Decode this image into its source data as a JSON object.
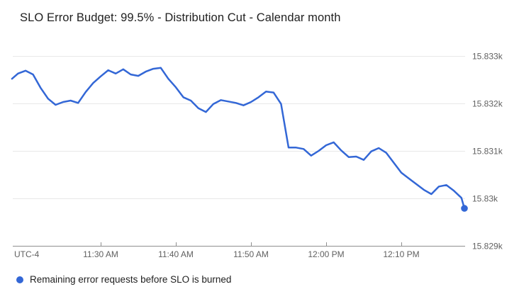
{
  "chart": {
    "title": "SLO Error Budget: 99.5% - Distribution Cut - Calendar month"
  },
  "legend": {
    "label": "Remaining error requests before SLO is burned"
  },
  "colors": {
    "line": "#3367d6",
    "marker": "#3367d6",
    "grid": "#e8e8e8",
    "axis": "#8f8f8f",
    "tick_label": "#616161",
    "title_text": "#212121",
    "legend_text": "#212121",
    "background": "#ffffff"
  },
  "chart_data": {
    "type": "line",
    "title": "SLO Error Budget: 99.5% - Distribution Cut - Calendar month",
    "xlabel": "",
    "ylabel": "",
    "x_unit": "minutes after 11:00 AM",
    "utc_label": "UTC-4",
    "xlim": [
      18.2,
      78.4
    ],
    "ylim": [
      15829,
      15833
    ],
    "grid": true,
    "legend_position": "bottom",
    "last_point_marker": true,
    "x_ticks": [
      {
        "t": 30,
        "label": "11:30 AM"
      },
      {
        "t": 40,
        "label": "11:40 AM"
      },
      {
        "t": 50,
        "label": "11:50 AM"
      },
      {
        "t": 60,
        "label": "12:00 PM"
      },
      {
        "t": 70,
        "label": "12:10 PM"
      }
    ],
    "y_ticks": [
      {
        "v": 15833,
        "label": "15.833k"
      },
      {
        "v": 15832,
        "label": "15.832k"
      },
      {
        "v": 15831,
        "label": "15.831k"
      },
      {
        "v": 15830,
        "label": "15.83k"
      },
      {
        "v": 15829,
        "label": "15.829k"
      }
    ],
    "series": [
      {
        "name": "Remaining error requests before SLO is burned",
        "points": [
          [
            18.2,
            15832.52
          ],
          [
            19,
            15832.63
          ],
          [
            20,
            15832.69
          ],
          [
            21,
            15832.61
          ],
          [
            22,
            15832.33
          ],
          [
            23,
            15832.1
          ],
          [
            24,
            15831.97
          ],
          [
            25,
            15832.03
          ],
          [
            26,
            15832.06
          ],
          [
            27,
            15832.01
          ],
          [
            28,
            15832.24
          ],
          [
            29,
            15832.43
          ],
          [
            30,
            15832.57
          ],
          [
            31,
            15832.7
          ],
          [
            32,
            15832.63
          ],
          [
            33,
            15832.72
          ],
          [
            34,
            15832.61
          ],
          [
            35,
            15832.58
          ],
          [
            36,
            15832.67
          ],
          [
            37,
            15832.73
          ],
          [
            38,
            15832.75
          ],
          [
            39,
            15832.52
          ],
          [
            40,
            15832.34
          ],
          [
            41,
            15832.13
          ],
          [
            42,
            15832.06
          ],
          [
            43,
            15831.9
          ],
          [
            44,
            15831.82
          ],
          [
            45,
            15831.99
          ],
          [
            46,
            15832.07
          ],
          [
            47,
            15832.04
          ],
          [
            48,
            15832.01
          ],
          [
            49,
            15831.96
          ],
          [
            50,
            15832.03
          ],
          [
            51,
            15832.13
          ],
          [
            52,
            15832.25
          ],
          [
            53,
            15832.23
          ],
          [
            54,
            15831.99
          ],
          [
            55,
            15831.07
          ],
          [
            56,
            15831.07
          ],
          [
            57,
            15831.04
          ],
          [
            58,
            15830.9
          ],
          [
            59,
            15831.0
          ],
          [
            60,
            15831.12
          ],
          [
            61,
            15831.18
          ],
          [
            62,
            15831.01
          ],
          [
            63,
            15830.87
          ],
          [
            64,
            15830.88
          ],
          [
            65,
            15830.81
          ],
          [
            66,
            15830.99
          ],
          [
            67,
            15831.06
          ],
          [
            68,
            15830.96
          ],
          [
            69,
            15830.75
          ],
          [
            70,
            15830.54
          ],
          [
            71,
            15830.42
          ],
          [
            72,
            15830.3
          ],
          [
            73,
            15830.18
          ],
          [
            74,
            15830.09
          ],
          [
            75,
            15830.25
          ],
          [
            76,
            15830.28
          ],
          [
            77,
            15830.16
          ],
          [
            78,
            15830.01
          ],
          [
            78.4,
            15829.79
          ]
        ]
      }
    ]
  }
}
